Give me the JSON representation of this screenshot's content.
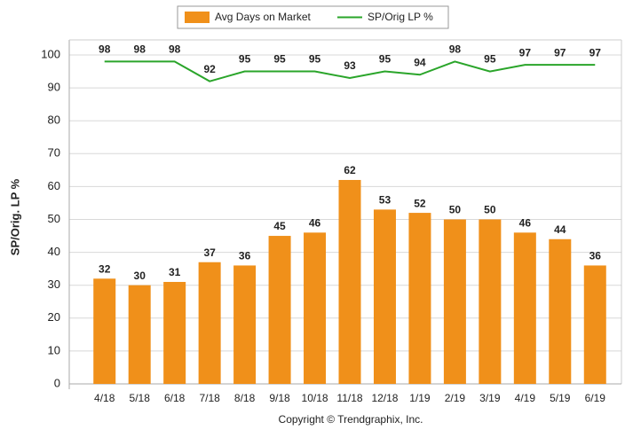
{
  "chart_data": {
    "type": "bar",
    "categories": [
      "4/18",
      "5/18",
      "6/18",
      "7/18",
      "8/18",
      "9/18",
      "10/18",
      "11/18",
      "12/18",
      "1/19",
      "2/19",
      "3/19",
      "4/19",
      "5/19",
      "6/19"
    ],
    "series": [
      {
        "name": "Avg Days on Market",
        "type": "bar",
        "color": "#f0901a",
        "values": [
          32,
          30,
          31,
          37,
          36,
          45,
          46,
          62,
          53,
          52,
          50,
          50,
          46,
          44,
          36
        ]
      },
      {
        "name": "SP/Orig LP %",
        "type": "line",
        "color": "#2aa52a",
        "values": [
          98,
          98,
          98,
          92,
          95,
          95,
          95,
          93,
          95,
          94,
          98,
          95,
          97,
          97,
          97
        ]
      }
    ],
    "ylabel": "SP/Orig. LP %",
    "ylim": [
      0,
      100
    ],
    "yticks": [
      0,
      10,
      20,
      30,
      40,
      50,
      60,
      70,
      80,
      90,
      100
    ],
    "grid": true,
    "legend": "top",
    "copyright": "Copyright © Trendgraphix, Inc."
  }
}
